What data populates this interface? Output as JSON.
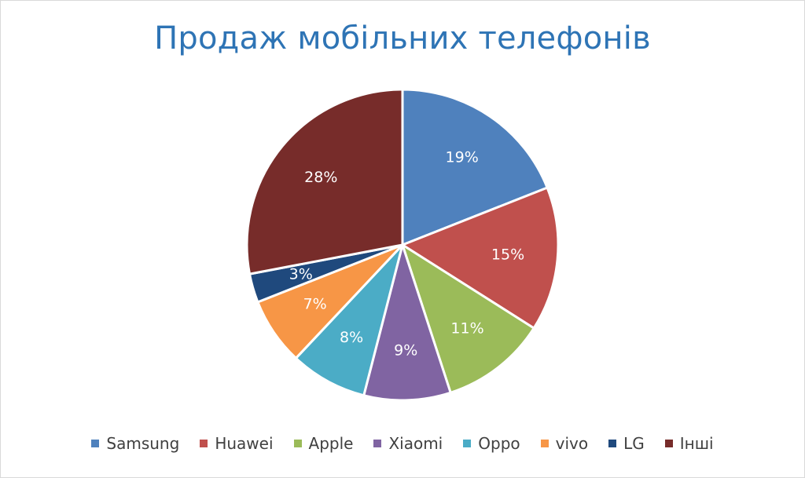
{
  "chart_data": {
    "type": "pie",
    "title": "Продаж мобільних телефонів",
    "categories": [
      "Samsung",
      "Huawei",
      "Apple",
      "Xiaomi",
      "Oppo",
      "vivo",
      "LG",
      "Інші"
    ],
    "values": [
      19,
      15,
      11,
      9,
      8,
      7,
      3,
      28
    ],
    "labels": [
      "19%",
      "15%",
      "11%",
      "9%",
      "8%",
      "7%",
      "3%",
      "28%"
    ],
    "colors": [
      "#4f81bd",
      "#c0504d",
      "#9bbb59",
      "#8064a2",
      "#4bacc6",
      "#f79646",
      "#1f497d",
      "#772c2a"
    ],
    "legend_position": "bottom"
  }
}
